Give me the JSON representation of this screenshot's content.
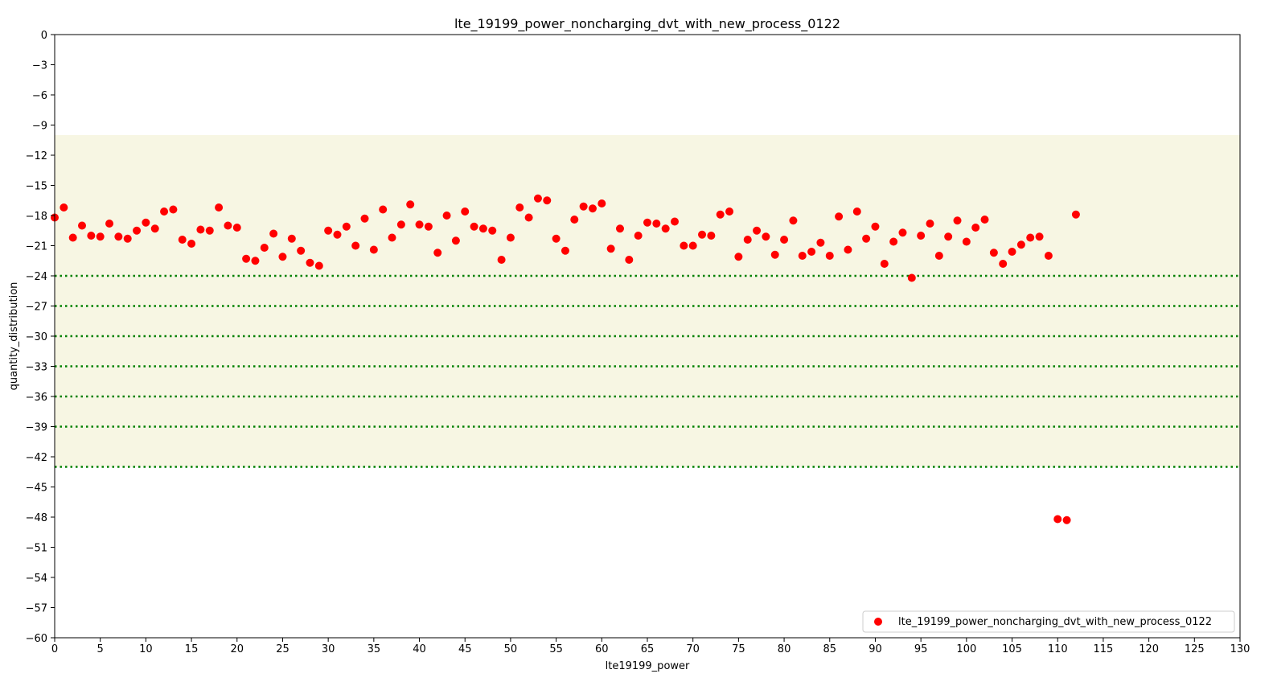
{
  "chart_data": {
    "type": "scatter",
    "title": "lte_19199_power_noncharging_dvt_with_new_process_0122",
    "xlabel": "lte19199_power",
    "ylabel": "quantity_distribution",
    "xlim": [
      0,
      130
    ],
    "ylim": [
      -60,
      0
    ],
    "x_ticks": [
      0,
      5,
      10,
      15,
      20,
      25,
      30,
      35,
      40,
      45,
      50,
      55,
      60,
      65,
      70,
      75,
      80,
      85,
      90,
      95,
      100,
      105,
      110,
      115,
      120,
      125,
      130
    ],
    "y_ticks": [
      0,
      -3,
      -6,
      -9,
      -12,
      -15,
      -18,
      -21,
      -24,
      -27,
      -30,
      -33,
      -36,
      -39,
      -42,
      -45,
      -48,
      -51,
      -54,
      -57,
      -60
    ],
    "y_tick_labels": [
      "0",
      "−3",
      "−6",
      "−9",
      "−12",
      "−15",
      "−18",
      "−21",
      "−24",
      "−27",
      "−30",
      "−33",
      "−36",
      "−39",
      "−42",
      "−45",
      "−48",
      "−51",
      "−54",
      "−57",
      "−60"
    ],
    "shaded_band": {
      "y_range": [
        -43.0,
        -10.0
      ],
      "color": "#f7f6e3"
    },
    "reference_lines": {
      "y_values": [
        -24.0,
        -27.0,
        -30.0,
        -33.0,
        -36.0,
        -39.0,
        -43.0
      ],
      "color": "#008000",
      "style": "dotted"
    },
    "legend": {
      "position": "bottom-right"
    },
    "series": [
      {
        "name": "lte_19199_power_noncharging_dvt_with_new_process_0122",
        "color": "#ff0000",
        "x": [
          0,
          1,
          2,
          3,
          4,
          5,
          6,
          7,
          8,
          9,
          10,
          11,
          12,
          13,
          14,
          15,
          16,
          17,
          18,
          19,
          20,
          21,
          22,
          23,
          24,
          25,
          26,
          27,
          28,
          29,
          30,
          31,
          32,
          33,
          34,
          35,
          36,
          37,
          38,
          39,
          40,
          41,
          42,
          43,
          44,
          45,
          46,
          47,
          48,
          49,
          50,
          51,
          52,
          53,
          54,
          55,
          56,
          57,
          58,
          59,
          60,
          61,
          62,
          63,
          64,
          65,
          66,
          67,
          68,
          69,
          70,
          71,
          72,
          73,
          74,
          75,
          76,
          77,
          78,
          79,
          80,
          81,
          82,
          83,
          84,
          85,
          86,
          87,
          88,
          89,
          90,
          91,
          92,
          93,
          94,
          95,
          96,
          97,
          98,
          99,
          100,
          101,
          102,
          103,
          104,
          105,
          106,
          107,
          108,
          109,
          110,
          111,
          112
        ],
        "y": [
          -18.2,
          -17.2,
          -20.2,
          -19.0,
          -20.0,
          -20.1,
          -18.8,
          -20.1,
          -20.3,
          -19.5,
          -18.7,
          -19.3,
          -17.6,
          -17.4,
          -20.4,
          -20.8,
          -19.4,
          -19.5,
          -17.2,
          -19.0,
          -19.2,
          -22.3,
          -22.5,
          -21.2,
          -19.8,
          -22.1,
          -20.3,
          -21.5,
          -22.7,
          -23.0,
          -19.5,
          -19.9,
          -19.1,
          -21.0,
          -18.3,
          -21.4,
          -17.4,
          -20.2,
          -18.9,
          -16.9,
          -18.9,
          -19.1,
          -21.7,
          -18.0,
          -20.5,
          -17.6,
          -19.1,
          -19.3,
          -19.5,
          -22.4,
          -20.2,
          -17.2,
          -18.2,
          -16.3,
          -16.5,
          -20.3,
          -21.5,
          -18.4,
          -17.1,
          -17.3,
          -16.8,
          -21.3,
          -19.3,
          -22.4,
          -20.0,
          -18.7,
          -18.8,
          -19.3,
          -18.6,
          -21.0,
          -21.0,
          -19.9,
          -20.0,
          -17.9,
          -17.6,
          -22.1,
          -20.4,
          -19.5,
          -20.1,
          -21.9,
          -20.4,
          -18.5,
          -22.0,
          -21.6,
          -20.7,
          -22.0,
          -18.1,
          -21.4,
          -17.6,
          -20.3,
          -19.1,
          -22.8,
          -20.6,
          -19.7,
          -24.2,
          -20.0,
          -18.8,
          -22.0,
          -20.1,
          -18.5,
          -20.6,
          -19.2,
          -18.4,
          -21.7,
          -22.8,
          -21.6,
          -20.9,
          -20.2,
          -20.1,
          -22.0,
          -48.2,
          -48.3,
          -17.9
        ]
      }
    ]
  }
}
